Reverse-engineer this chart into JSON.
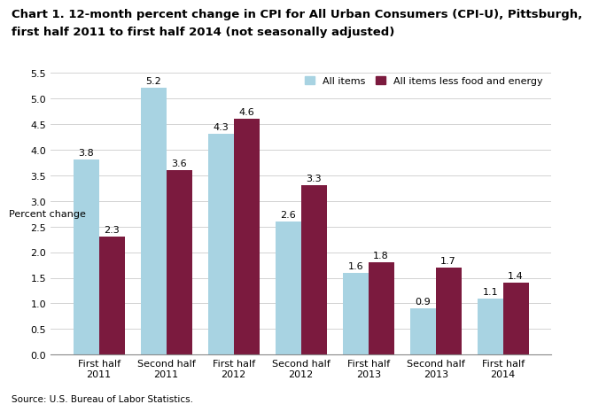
{
  "title_line1": "Chart 1. 12-month percent change in CPI for All Urban Consumers (CPI-U), Pittsburgh,",
  "title_line2": "first half 2011 to first half 2014 (not seasonally adjusted)",
  "ylabel": "Percent change",
  "source": "Source: U.S. Bureau of Labor Statistics.",
  "categories": [
    "First half\n2011",
    "Second half\n2011",
    "First half\n2012",
    "Second half\n2012",
    "First half\n2013",
    "Second half\n2013",
    "First half\n2014"
  ],
  "all_items": [
    3.8,
    5.2,
    4.3,
    2.6,
    1.6,
    0.9,
    1.1
  ],
  "less_food_energy": [
    2.3,
    3.6,
    4.6,
    3.3,
    1.8,
    1.7,
    1.4
  ],
  "color_all_items": "#a8d3e2",
  "color_less": "#7b1a3e",
  "ylim": [
    0.0,
    5.5
  ],
  "yticks": [
    0.0,
    0.5,
    1.0,
    1.5,
    2.0,
    2.5,
    3.0,
    3.5,
    4.0,
    4.5,
    5.0,
    5.5
  ],
  "legend_labels": [
    "All items",
    "All items less food and energy"
  ],
  "bar_width": 0.38,
  "title_fontsize": 9.5,
  "label_fontsize": 8.0,
  "tick_fontsize": 8.0,
  "source_fontsize": 7.5,
  "value_fontsize": 8.0
}
